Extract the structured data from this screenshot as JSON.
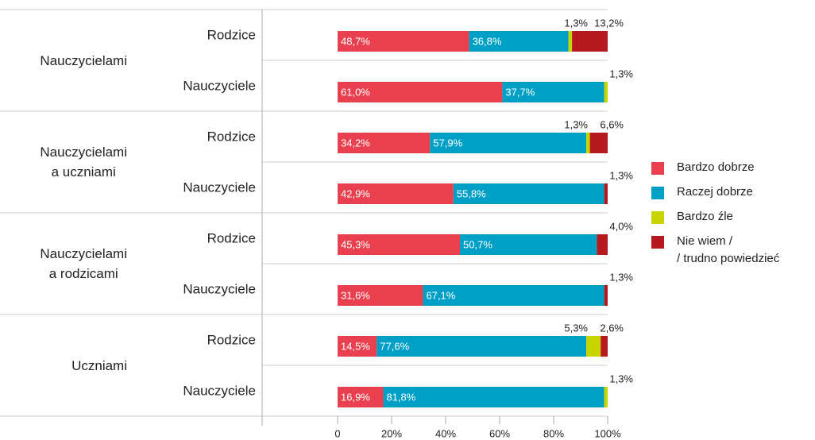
{
  "chart_data": {
    "type": "stacked-bar-horizontal",
    "groups": [
      "Nauczycielami",
      "Nauczycielami\na uczniami",
      "Nauczycielami\na rodzicami",
      "Uczniami"
    ],
    "categories": [
      "Rodzice",
      "Nauczyciele",
      "Rodzice",
      "Nauczyciele",
      "Rodzice",
      "Nauczyciele",
      "Rodzice",
      "Nauczyciele"
    ],
    "series": [
      {
        "name": "Bardzo dobrze",
        "color": "#e8404f",
        "values": [
          48.7,
          61.0,
          34.2,
          42.9,
          45.3,
          31.6,
          14.5,
          16.9
        ],
        "value_labels": [
          "48,7%",
          "61,0%",
          "34,2%",
          "42,9%",
          "45,3%",
          "31,6%",
          "14,5%",
          "16,9%"
        ]
      },
      {
        "name": "Raczej dobrze",
        "color": "#00a0c6",
        "values": [
          36.8,
          37.7,
          57.9,
          55.8,
          50.7,
          67.1,
          77.6,
          81.8
        ],
        "value_labels": [
          "36,8%",
          "37,7%",
          "57,9%",
          "55,8%",
          "50,7%",
          "67,1%",
          "77,6%",
          "81,8%"
        ]
      },
      {
        "name": "Bardzo źle",
        "color": "#c8d400",
        "values": [
          1.3,
          1.3,
          1.3,
          null,
          null,
          null,
          5.3,
          1.3
        ],
        "value_labels": [
          "1,3%",
          "1,3%",
          "1,3%",
          null,
          null,
          null,
          "5,3%",
          "1,3%"
        ]
      },
      {
        "name": "Nie wiem /\n/ trudno powiedzieć",
        "color": "#b5181e",
        "values": [
          13.2,
          null,
          6.6,
          1.3,
          4.0,
          1.3,
          2.6,
          null
        ],
        "value_labels": [
          "13,2%",
          null,
          "6,6%",
          "1,3%",
          "4,0%",
          "1,3%",
          "2,6%",
          null
        ]
      }
    ],
    "xlim": [
      0,
      100
    ],
    "xticks": [
      0,
      {
        "value": 20,
        "label": "20%"
      },
      {
        "value": 40,
        "label": "40%"
      },
      {
        "value": 60,
        "label": "60%"
      },
      {
        "value": 80,
        "label": "80%"
      },
      {
        "value": 100,
        "label": "100%"
      }
    ],
    "legend": "right"
  }
}
